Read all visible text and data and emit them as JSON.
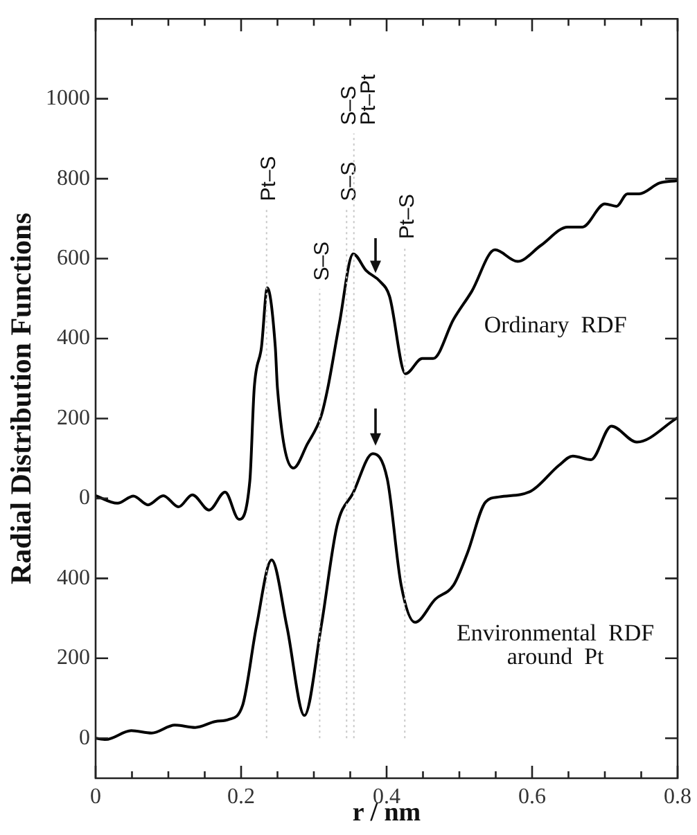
{
  "chart_data": {
    "type": "line",
    "xlabel": "r / nm",
    "ylabel": "Radial Distribution Functions",
    "series": [
      {
        "name": "Ordinary RDF",
        "color": "#000000",
        "axis": "y",
        "x": [
          0,
          0.03,
          0.052,
          0.072,
          0.093,
          0.114,
          0.133,
          0.156,
          0.178,
          0.197,
          0.212,
          0.218,
          0.228,
          0.236,
          0.247,
          0.25,
          0.272,
          0.291,
          0.31,
          0.319,
          0.335,
          0.354,
          0.372,
          0.391,
          0.404,
          0.426,
          0.449,
          0.464,
          0.492,
          0.517,
          0.549,
          0.58,
          0.612,
          0.649,
          0.669,
          0.7,
          0.716,
          0.731,
          0.747,
          0.775,
          0.799
        ],
        "values": [
          7,
          -12,
          6,
          -16,
          7,
          -21,
          9,
          -29,
          16,
          -52,
          44,
          275,
          379,
          527,
          379,
          275,
          76,
          136,
          206,
          275,
          437,
          612,
          570,
          543,
          506,
          312,
          350,
          350,
          448,
          518,
          622,
          593,
          633,
          679,
          679,
          737,
          731,
          762,
          762,
          789,
          795
        ]
      },
      {
        "name": "Environmental RDF around Pt",
        "color": "#000000",
        "axis": "y2",
        "x": [
          0,
          0.014,
          0.049,
          0.077,
          0.109,
          0.137,
          0.165,
          0.183,
          0.202,
          0.221,
          0.242,
          0.263,
          0.287,
          0.31,
          0.332,
          0.354,
          0.381,
          0.401,
          0.42,
          0.439,
          0.467,
          0.492,
          0.511,
          0.536,
          0.555,
          0.599,
          0.637,
          0.656,
          0.681,
          0.709,
          0.744,
          0.799
        ],
        "values": [
          0,
          -3,
          19,
          13,
          33,
          27,
          42,
          47,
          82,
          279,
          446,
          279,
          57,
          279,
          533,
          614,
          712,
          648,
          383,
          290,
          348,
          383,
          463,
          591,
          604,
          619,
          683,
          706,
          697,
          781,
          741,
          801
        ]
      }
    ],
    "xlim": [
      0,
      0.8
    ],
    "xticks": [
      0,
      {
        "value": 0.05,
        "label": null
      },
      0.2,
      {
        "value": 0.1,
        "label": null
      },
      {
        "value": 0.15,
        "label": null
      },
      {
        "value": 0.25,
        "label": null
      },
      {
        "value": 0.3,
        "label": null
      },
      {
        "value": 0.35,
        "label": null
      },
      0.4,
      {
        "value": 0.45,
        "label": null
      },
      {
        "value": 0.5,
        "label": null
      },
      {
        "value": 0.55,
        "label": null
      },
      0.6,
      {
        "value": 0.65,
        "label": null
      },
      {
        "value": 0.7,
        "label": null
      },
      {
        "value": 0.75,
        "label": null
      },
      0.8
    ],
    "ylim": [
      -700,
      1200
    ],
    "yticks": [
      0,
      200,
      400,
      600,
      800,
      1000
    ],
    "y2lim": [
      -100,
      1800
    ],
    "y2ticks": [
      0,
      200,
      400
    ],
    "grid": false,
    "legend": false,
    "marker": "none",
    "line_style": "solid",
    "ref_lines": [
      {
        "axis": "x",
        "value": 0.235,
        "label": "Pt–S",
        "color": "#c8c8c8",
        "line_style": "dotted"
      },
      {
        "axis": "x",
        "value": 0.308,
        "label": "S–S",
        "color": "#c8c8c8",
        "line_style": "dotted"
      },
      {
        "axis": "x",
        "value": 0.345,
        "label": "S–S",
        "color": "#c8c8c8",
        "line_style": "dotted"
      },
      {
        "axis": "x",
        "value": 0.355,
        "label": "S–S\nPt–Pt",
        "color": "#c8c8c8",
        "line_style": "dotted"
      },
      {
        "axis": "x",
        "value": 0.425,
        "label": "Pt–S",
        "color": "#c8c8c8",
        "line_style": "dotted"
      }
    ]
  }
}
